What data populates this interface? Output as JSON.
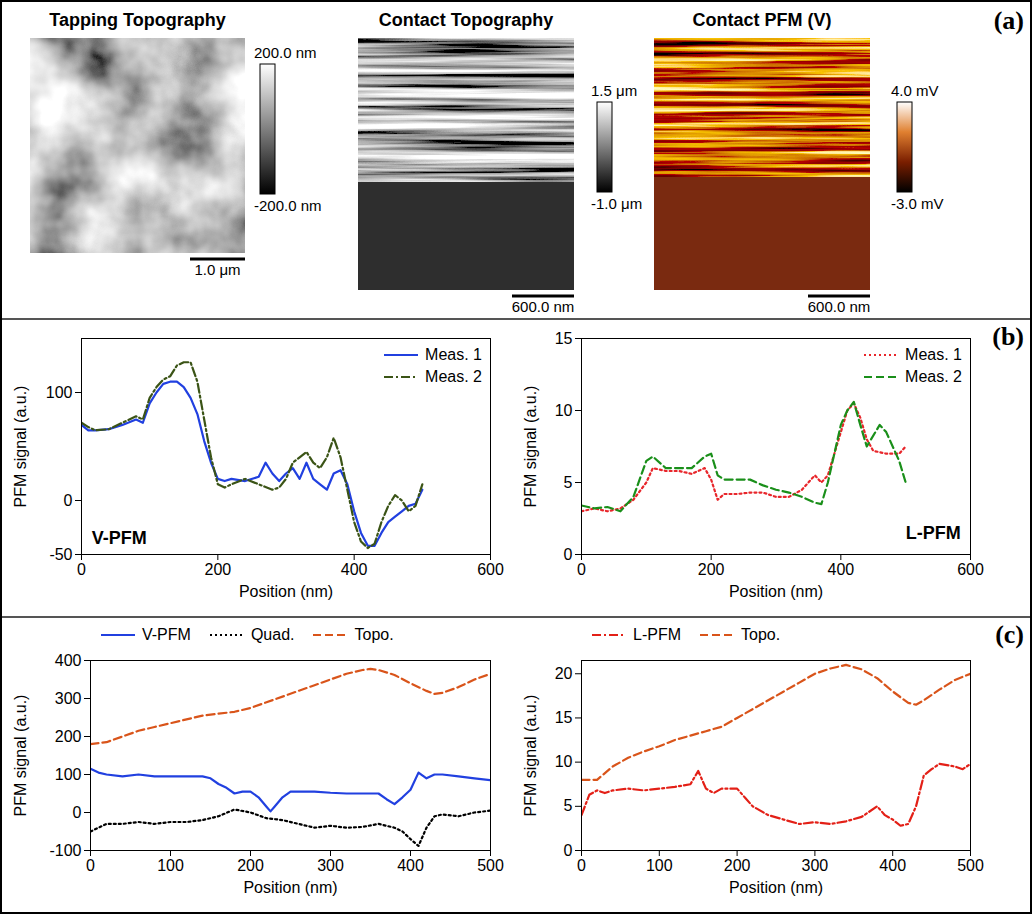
{
  "panel_labels": [
    "(a)",
    "(b)",
    "(c)"
  ],
  "images": [
    {
      "title": "Tapping Topography",
      "scale_bar": "1.0 μm",
      "colorbar": {
        "top_label": "200.0 nm",
        "bottom_label": "-200.0 nm",
        "colors": [
          "#000000",
          "#ffffff"
        ]
      }
    },
    {
      "title": "Contact Topography",
      "scale_bar": "600.0 nm",
      "colorbar": {
        "top_label": "1.5 μm",
        "bottom_label": "-1.0 μm",
        "colors": [
          "#000000",
          "#ffffff"
        ]
      }
    },
    {
      "title": "Contact PFM (V)",
      "scale_bar": "600.0 nm",
      "colorbar": {
        "top_label": "4.0 mV",
        "bottom_label": "-3.0 mV",
        "colors": [
          "#000000",
          "#7a1e00",
          "#e08030",
          "#ffffff"
        ]
      }
    }
  ],
  "chart_data": [
    {
      "type": "line",
      "xlabel": "Position (nm)",
      "ylabel": "PFM signal (a.u.)",
      "xlim": [
        0,
        600
      ],
      "xticks": [
        0,
        200,
        400,
        600
      ],
      "ylim": [
        -50,
        150
      ],
      "yticks": [
        -50,
        0,
        100
      ],
      "legend": "top-right",
      "annotations": [
        {
          "text": "V-PFM",
          "x": 15,
          "y": -35
        }
      ],
      "series": [
        {
          "name": "Meas. 1",
          "color": "#2140e0",
          "line_style": "solid",
          "x": [
            0,
            10,
            20,
            40,
            60,
            80,
            90,
            100,
            110,
            120,
            130,
            140,
            150,
            160,
            170,
            180,
            190,
            200,
            210,
            220,
            240,
            260,
            270,
            280,
            290,
            300,
            310,
            320,
            330,
            340,
            350,
            360,
            370,
            380,
            390,
            400,
            410,
            420,
            430,
            440,
            450,
            460,
            470,
            480,
            490,
            500
          ],
          "values": [
            70,
            65,
            65,
            66,
            70,
            75,
            72,
            90,
            100,
            108,
            110,
            110,
            105,
            95,
            80,
            55,
            35,
            20,
            18,
            20,
            18,
            22,
            35,
            25,
            18,
            25,
            30,
            20,
            35,
            20,
            15,
            10,
            25,
            28,
            15,
            -10,
            -30,
            -42,
            -42,
            -30,
            -20,
            -15,
            -10,
            -5,
            -3,
            10
          ]
        },
        {
          "name": "Meas. 2",
          "color": "#3b5416",
          "line_style": "dashdot",
          "x": [
            0,
            10,
            20,
            40,
            60,
            80,
            90,
            100,
            110,
            120,
            130,
            140,
            150,
            160,
            170,
            180,
            190,
            200,
            210,
            220,
            240,
            260,
            280,
            290,
            300,
            310,
            320,
            330,
            340,
            350,
            360,
            370,
            380,
            390,
            400,
            410,
            420,
            430,
            440,
            450,
            460,
            470,
            480,
            490,
            500
          ],
          "values": [
            72,
            68,
            65,
            66,
            72,
            78,
            75,
            95,
            105,
            112,
            115,
            125,
            128,
            128,
            110,
            75,
            40,
            15,
            12,
            15,
            20,
            15,
            10,
            12,
            20,
            35,
            40,
            45,
            35,
            30,
            40,
            58,
            40,
            10,
            -20,
            -38,
            -44,
            -40,
            -20,
            -5,
            5,
            0,
            -10,
            -5,
            15
          ]
        }
      ]
    },
    {
      "type": "line",
      "xlabel": "Position (nm)",
      "ylabel": "PFM signal (a.u.)",
      "xlim": [
        0,
        600
      ],
      "xticks": [
        0,
        200,
        400,
        600
      ],
      "ylim": [
        0,
        15
      ],
      "yticks": [
        0,
        5,
        10,
        15
      ],
      "legend": "top-right",
      "annotations": [
        {
          "text": "L-PFM",
          "x": 585,
          "y": 1.5
        }
      ],
      "series": [
        {
          "name": "Meas. 1",
          "color": "#e8262b",
          "line_style": "dotted",
          "x": [
            0,
            20,
            40,
            60,
            80,
            100,
            110,
            130,
            150,
            170,
            190,
            200,
            210,
            220,
            240,
            260,
            280,
            300,
            320,
            340,
            360,
            370,
            380,
            390,
            400,
            410,
            420,
            430,
            440,
            450,
            470,
            490,
            500
          ],
          "values": [
            3,
            3.2,
            3,
            3.2,
            3.8,
            5,
            6,
            5.8,
            5.8,
            5.6,
            6,
            5.2,
            3.8,
            4.2,
            4.2,
            4.3,
            4.3,
            4,
            4,
            4.5,
            5.5,
            5,
            5.5,
            7,
            8.5,
            10,
            10.5,
            9.5,
            8,
            7.2,
            7,
            7,
            7.5
          ]
        },
        {
          "name": "Meas. 2",
          "color": "#1a8f1a",
          "line_style": "dashed",
          "x": [
            0,
            20,
            40,
            60,
            80,
            100,
            110,
            130,
            150,
            170,
            190,
            200,
            210,
            220,
            240,
            260,
            280,
            300,
            320,
            340,
            360,
            370,
            380,
            390,
            400,
            410,
            420,
            430,
            440,
            460,
            470,
            490,
            500
          ],
          "values": [
            3.4,
            3.2,
            3.3,
            3,
            4,
            6.5,
            6.8,
            6,
            6,
            6,
            6.8,
            7,
            5.5,
            5.2,
            5.2,
            5.2,
            4.8,
            4.5,
            4.3,
            4,
            3.6,
            3.5,
            5,
            7,
            9,
            10,
            10.6,
            9,
            7.5,
            9,
            8.5,
            6.5,
            5
          ]
        }
      ]
    },
    {
      "type": "line",
      "xlabel": "Position (nm)",
      "ylabel": "PFM signal (a.u.)",
      "xlim": [
        0,
        500
      ],
      "xticks": [
        0,
        100,
        200,
        300,
        400,
        500
      ],
      "ylim": [
        -100,
        400
      ],
      "yticks": [
        -100,
        0,
        100,
        200,
        300,
        400
      ],
      "legend": "top",
      "series": [
        {
          "name": "V-PFM",
          "color": "#2140e0",
          "line_style": "solid",
          "x": [
            0,
            10,
            20,
            40,
            60,
            80,
            100,
            120,
            140,
            150,
            160,
            170,
            180,
            190,
            200,
            210,
            220,
            225,
            230,
            240,
            250,
            260,
            280,
            300,
            320,
            340,
            360,
            370,
            380,
            390,
            400,
            410,
            420,
            430,
            440,
            460,
            480,
            500
          ],
          "values": [
            115,
            105,
            100,
            95,
            100,
            95,
            95,
            95,
            95,
            90,
            75,
            65,
            50,
            55,
            55,
            40,
            15,
            3,
            15,
            40,
            55,
            55,
            55,
            52,
            50,
            50,
            50,
            35,
            22,
            40,
            60,
            105,
            90,
            100,
            100,
            95,
            90,
            85
          ]
        },
        {
          "name": "Quad.",
          "color": "#000000",
          "line_style": "dotted",
          "x": [
            0,
            10,
            20,
            40,
            60,
            80,
            100,
            120,
            140,
            160,
            180,
            200,
            220,
            240,
            260,
            280,
            300,
            320,
            340,
            360,
            380,
            390,
            400,
            410,
            420,
            430,
            440,
            460,
            480,
            500
          ],
          "values": [
            -50,
            -40,
            -30,
            -30,
            -25,
            -30,
            -25,
            -25,
            -20,
            -10,
            8,
            0,
            -15,
            -20,
            -30,
            -40,
            -35,
            -40,
            -38,
            -30,
            -40,
            -50,
            -70,
            -88,
            -40,
            -10,
            -5,
            -10,
            0,
            5
          ]
        },
        {
          "name": "Topo.",
          "color": "#d9541a",
          "line_style": "dashed",
          "x": [
            0,
            20,
            40,
            60,
            80,
            100,
            120,
            140,
            160,
            180,
            200,
            220,
            240,
            260,
            280,
            300,
            320,
            340,
            350,
            360,
            380,
            400,
            420,
            430,
            440,
            460,
            480,
            500
          ],
          "values": [
            180,
            185,
            200,
            215,
            225,
            235,
            245,
            255,
            260,
            265,
            275,
            290,
            305,
            320,
            335,
            350,
            365,
            375,
            378,
            375,
            362,
            340,
            320,
            312,
            315,
            330,
            350,
            365
          ]
        }
      ]
    },
    {
      "type": "line",
      "xlabel": "Position (nm)",
      "ylabel": "PFM signal (a.u.)",
      "xlim": [
        0,
        500
      ],
      "xticks": [
        0,
        100,
        200,
        300,
        400,
        500
      ],
      "ylim": [
        0,
        21.5
      ],
      "yticks": [
        0,
        5,
        10,
        15,
        20
      ],
      "legend": "top",
      "series": [
        {
          "name": "L-PFM",
          "color": "#e32017",
          "line_style": "dashdot",
          "x": [
            0,
            10,
            20,
            30,
            40,
            60,
            80,
            100,
            120,
            140,
            150,
            160,
            170,
            180,
            190,
            200,
            210,
            220,
            240,
            260,
            280,
            300,
            320,
            340,
            360,
            380,
            390,
            400,
            410,
            420,
            430,
            440,
            450,
            460,
            480,
            490,
            500
          ],
          "values": [
            4,
            6.3,
            6.8,
            6.5,
            6.8,
            7,
            6.8,
            7,
            7.2,
            7.5,
            9,
            7,
            6.5,
            7,
            7,
            7,
            6,
            5,
            4,
            3.5,
            3,
            3.2,
            3,
            3.3,
            3.8,
            5,
            4,
            3.5,
            2.8,
            3,
            5,
            8.5,
            9.2,
            9.8,
            9.5,
            9.2,
            9.8
          ]
        },
        {
          "name": "Topo.",
          "color": "#d9541a",
          "line_style": "dashed",
          "x": [
            0,
            20,
            40,
            60,
            80,
            100,
            120,
            140,
            160,
            180,
            200,
            220,
            240,
            260,
            280,
            300,
            320,
            340,
            360,
            380,
            400,
            420,
            430,
            440,
            460,
            480,
            500
          ],
          "values": [
            8,
            8,
            9.5,
            10.5,
            11.2,
            11.8,
            12.5,
            13,
            13.5,
            14,
            15,
            16,
            17,
            18,
            19,
            20,
            20.6,
            21,
            20.5,
            19.5,
            18,
            16.7,
            16.5,
            17,
            18.2,
            19.3,
            20
          ]
        }
      ]
    }
  ]
}
